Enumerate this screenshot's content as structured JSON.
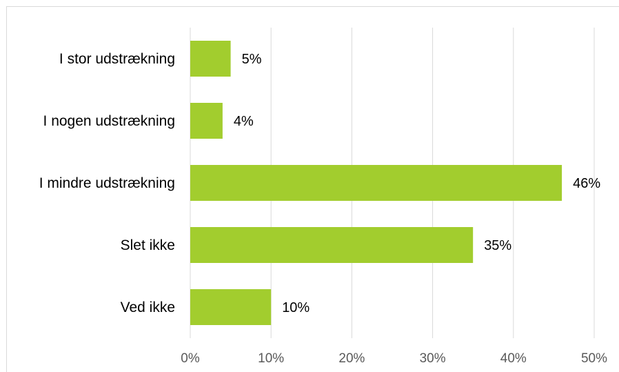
{
  "chart_data": {
    "type": "bar",
    "orientation": "horizontal",
    "categories": [
      "I stor udstrækning",
      "I nogen udstrækning",
      "I mindre udstrækning",
      "Slet ikke",
      "Ved ikke"
    ],
    "values": [
      5,
      4,
      46,
      35,
      10
    ],
    "data_labels": [
      "5%",
      "4%",
      "46%",
      "35%",
      "10%"
    ],
    "x_ticks": [
      "0%",
      "10%",
      "20%",
      "30%",
      "40%",
      "50%"
    ],
    "xlim": [
      0,
      50
    ],
    "unit": "%",
    "grid": true,
    "legend": "none",
    "bar_color": "#a2cd2e",
    "grid_color": "#d9d9d9",
    "title": "",
    "xlabel": "",
    "ylabel": ""
  }
}
